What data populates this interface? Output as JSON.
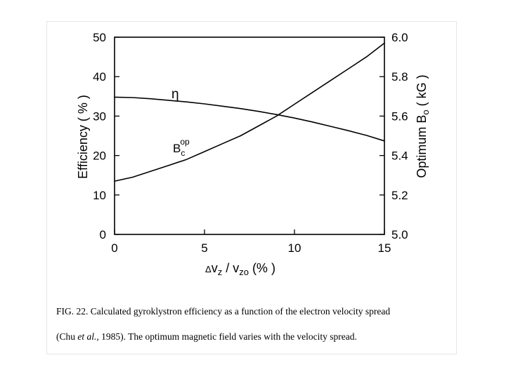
{
  "chart_data": {
    "type": "line",
    "xlabel": "Δv_z / v_zo (%)",
    "ylabel": "Efficiency ( % )",
    "y2label": "Optimum B_o ( kG )",
    "xlim": [
      0,
      15
    ],
    "ylim": [
      0,
      50
    ],
    "y2lim": [
      5.0,
      6.0
    ],
    "x_ticks": [
      "0",
      "5",
      "10",
      "15"
    ],
    "y_ticks": [
      "0",
      "10",
      "20",
      "30",
      "40",
      "50"
    ],
    "y2_ticks": [
      "5.0",
      "5.2",
      "5.4",
      "5.6",
      "5.8",
      "6.0"
    ],
    "grid": false,
    "series": [
      {
        "name": "η",
        "axis": "left",
        "x": [
          0,
          1,
          2,
          3,
          4,
          5,
          6,
          7,
          8,
          9,
          10,
          11,
          12,
          13,
          14,
          15
        ],
        "values": [
          34.8,
          34.7,
          34.4,
          34.0,
          33.6,
          33.1,
          32.5,
          31.9,
          31.2,
          30.4,
          29.5,
          28.5,
          27.4,
          26.3,
          25.1,
          23.7
        ]
      },
      {
        "name": "B_c^op",
        "axis": "right",
        "x": [
          0,
          1,
          2,
          3,
          4,
          5,
          6,
          7,
          8,
          9,
          10,
          11,
          12,
          13,
          14,
          15
        ],
        "values": [
          5.27,
          5.29,
          5.32,
          5.35,
          5.38,
          5.42,
          5.46,
          5.5,
          5.55,
          5.6,
          5.66,
          5.72,
          5.78,
          5.84,
          5.9,
          5.97
        ]
      }
    ]
  },
  "labels": {
    "ylabel_left": "Efficiency ( % )",
    "ylabel_right_prefix": "Optimum B",
    "ylabel_right_sub": "o",
    "ylabel_right_unit": " ( kG )",
    "xlabel_delta": "Δ",
    "xlabel_v1": "v",
    "xlabel_sub1": "z",
    "xlabel_mid": " / v",
    "xlabel_sub2": "zo",
    "xlabel_unit": "  (% )",
    "eta": "η",
    "b_main": "B",
    "b_sub": "c",
    "b_sup": "op"
  },
  "caption": {
    "line1": "FIG. 22. Calculated gyroklystron efficiency as a function of the electron velocity spread",
    "line2_pre": "(Chu ",
    "line2_italic": "et al.",
    "line2_post": ", 1985). The optimum magnetic field varies with the velocity spread."
  }
}
